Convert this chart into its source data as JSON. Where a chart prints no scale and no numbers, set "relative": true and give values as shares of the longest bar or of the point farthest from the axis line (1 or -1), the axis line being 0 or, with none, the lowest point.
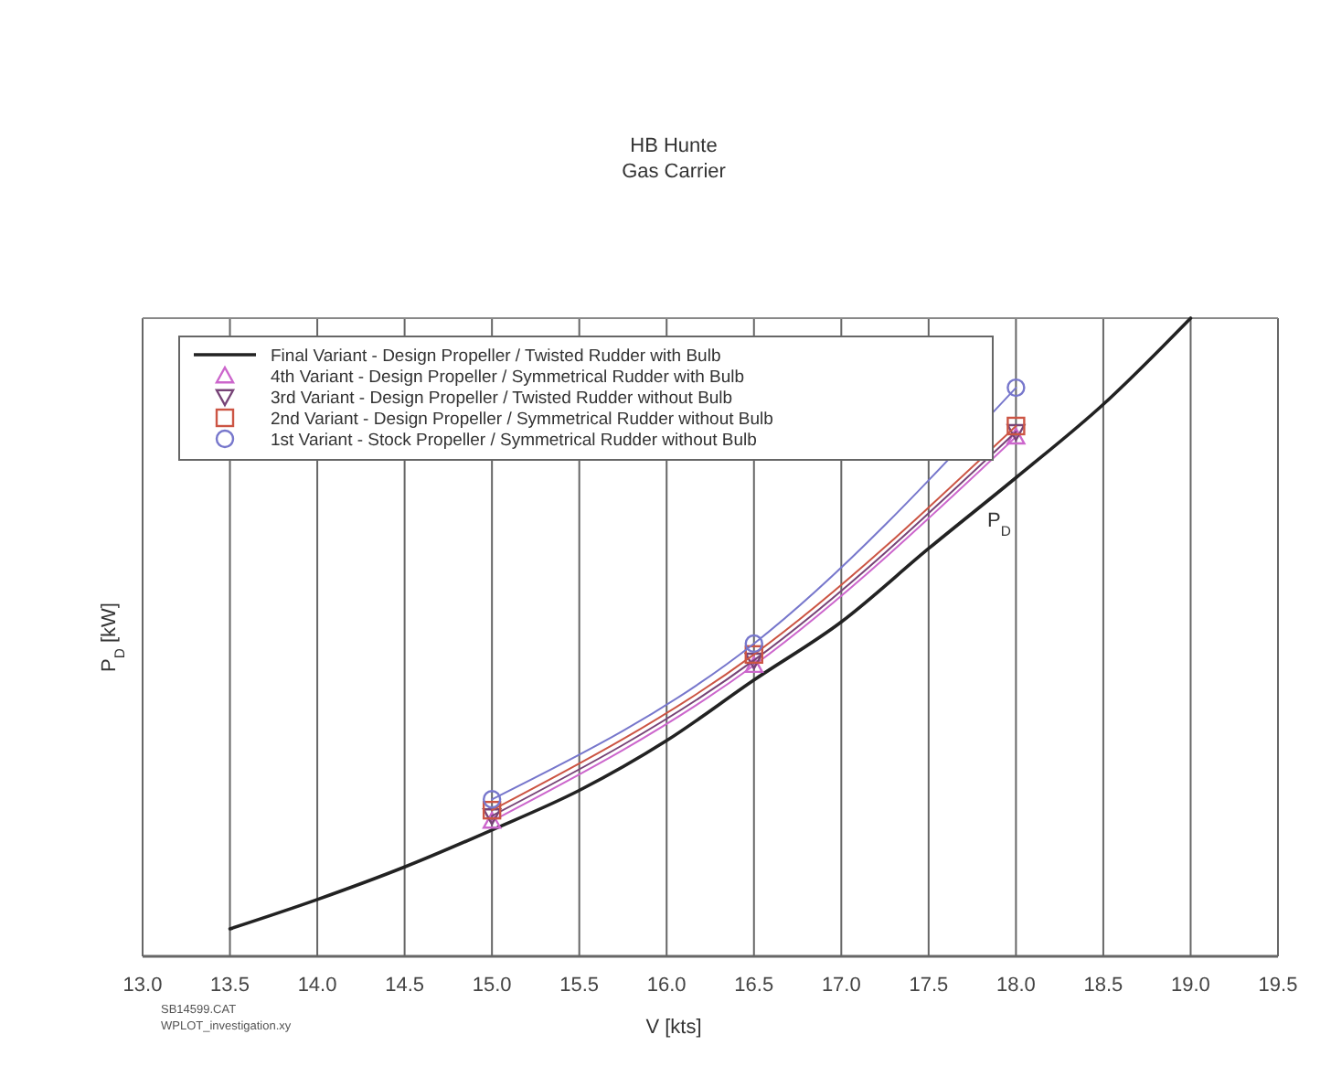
{
  "chart_data": {
    "type": "line",
    "title": "HB Hunte",
    "subtitle": "Gas Carrier",
    "xlabel": "V [kts]",
    "ylabel": "P$_{D}$ [kW]",
    "relative": true,
    "xlim": [
      13.0,
      19.5
    ],
    "xticks": [
      {
        "value": 13.0,
        "label": "13.0"
      },
      {
        "value": 13.5,
        "label": "13.5"
      },
      {
        "value": 14.0,
        "label": "14.0"
      },
      {
        "value": 14.5,
        "label": "14.5"
      },
      {
        "value": 15.0,
        "label": "15.0"
      },
      {
        "value": 15.5,
        "label": "15.5"
      },
      {
        "value": 16.0,
        "label": "16.0"
      },
      {
        "value": 16.5,
        "label": "16.5"
      },
      {
        "value": 17.0,
        "label": "17.0"
      },
      {
        "value": 17.5,
        "label": "17.5"
      },
      {
        "value": 18.0,
        "label": "18.0"
      },
      {
        "value": 18.5,
        "label": "18.5"
      },
      {
        "value": 19.0,
        "label": "19.0"
      },
      {
        "value": 19.5,
        "label": "19.5"
      }
    ],
    "grid": "x",
    "legend": "top left",
    "tick_labels": "x",
    "series": [
      {
        "name": "Final Variant - Design Propeller / Twisted Rudder with Bulb",
        "color": "#222222",
        "marker": "none",
        "x": [
          13.5,
          14.0,
          14.5,
          15.0,
          15.5,
          16.0,
          16.5,
          17.0,
          17.5,
          18.0,
          18.5,
          19.0
        ],
        "values": [
          0.043,
          0.089,
          0.14,
          0.198,
          0.26,
          0.338,
          0.433,
          0.524,
          0.639,
          0.75,
          0.865,
          1
        ]
      },
      {
        "name": "4th Variant - Design Propeller / Symmetrical Rudder with Bulb",
        "color": "#cc66cc",
        "marker": "triangle",
        "x": [
          15.0,
          16.5,
          18.0
        ],
        "values": [
          0.212,
          0.456,
          0.814
        ]
      },
      {
        "name": "3rd Variant - Design Propeller / Twisted Rudder without Bulb",
        "color": "#774477",
        "marker": "triangle-down",
        "x": [
          15.0,
          16.5,
          18.0
        ],
        "values": [
          0.22,
          0.464,
          0.822
        ]
      },
      {
        "name": "2nd Variant - Design Propeller / Symmetrical Rudder without Bulb",
        "color": "#cc5544",
        "marker": "square",
        "x": [
          15.0,
          16.5,
          18.0
        ],
        "values": [
          0.229,
          0.473,
          0.831
        ]
      },
      {
        "name": "1st Variant - Stock Propeller / Symmetrical Rudder without Bulb",
        "color": "#7777cc",
        "marker": "circle",
        "x": [
          15.0,
          16.5,
          18.0
        ],
        "values": [
          0.246,
          0.49,
          0.891
        ]
      }
    ],
    "annotations": [
      "P$_{D}$",
      "SB14599.CAT",
      "WPLOT_investigation.xy"
    ]
  }
}
